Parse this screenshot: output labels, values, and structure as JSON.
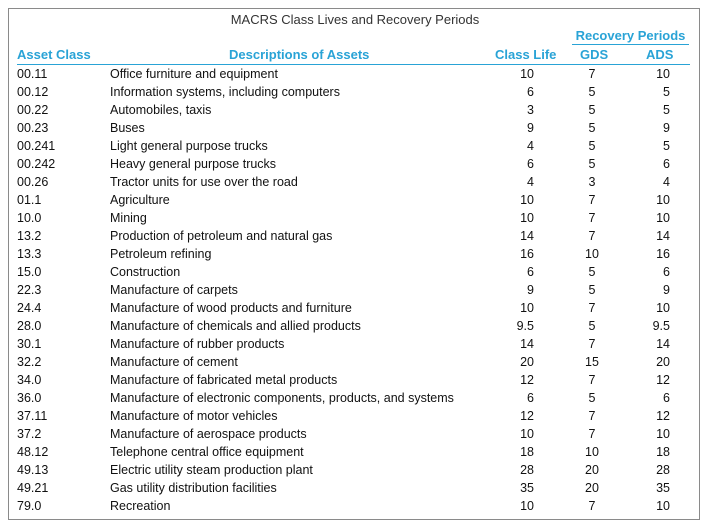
{
  "title": "MACRS Class Lives and Recovery Periods",
  "headers": {
    "recovery_periods": "Recovery Periods",
    "asset_class": "Asset Class",
    "descriptions": "Descriptions of Assets",
    "class_life": "Class Life",
    "gds": "GDS",
    "ads": "ADS"
  },
  "colors": {
    "header": "#29a3d6",
    "text": "#111111",
    "border": "#8a8a8a"
  },
  "rows": [
    {
      "asset_class": "00.11",
      "description": "Office furniture and equipment",
      "class_life": "10",
      "gds": "7",
      "ads": "10"
    },
    {
      "asset_class": "00.12",
      "description": "Information systems, including computers",
      "class_life": "6",
      "gds": "5",
      "ads": "5"
    },
    {
      "asset_class": "00.22",
      "description": "Automobiles, taxis",
      "class_life": "3",
      "gds": "5",
      "ads": "5"
    },
    {
      "asset_class": "00.23",
      "description": "Buses",
      "class_life": "9",
      "gds": "5",
      "ads": "9"
    },
    {
      "asset_class": "00.241",
      "description": "Light general purpose trucks",
      "class_life": "4",
      "gds": "5",
      "ads": "5"
    },
    {
      "asset_class": "00.242",
      "description": "Heavy general purpose trucks",
      "class_life": "6",
      "gds": "5",
      "ads": "6"
    },
    {
      "asset_class": "00.26",
      "description": "Tractor units for use over the road",
      "class_life": "4",
      "gds": "3",
      "ads": "4"
    },
    {
      "asset_class": "01.1",
      "description": "Agriculture",
      "class_life": "10",
      "gds": "7",
      "ads": "10"
    },
    {
      "asset_class": "10.0",
      "description": "Mining",
      "class_life": "10",
      "gds": "7",
      "ads": "10"
    },
    {
      "asset_class": "13.2",
      "description": "Production of petroleum and natural gas",
      "class_life": "14",
      "gds": "7",
      "ads": "14"
    },
    {
      "asset_class": "13.3",
      "description": "Petroleum refining",
      "class_life": "16",
      "gds": "10",
      "ads": "16"
    },
    {
      "asset_class": "15.0",
      "description": "Construction",
      "class_life": "6",
      "gds": "5",
      "ads": "6"
    },
    {
      "asset_class": "22.3",
      "description": "Manufacture of carpets",
      "class_life": "9",
      "gds": "5",
      "ads": "9"
    },
    {
      "asset_class": "24.4",
      "description": "Manufacture of wood products and furniture",
      "class_life": "10",
      "gds": "7",
      "ads": "10"
    },
    {
      "asset_class": "28.0",
      "description": "Manufacture of chemicals and allied products",
      "class_life": "9.5",
      "gds": "5",
      "ads": "9.5"
    },
    {
      "asset_class": "30.1",
      "description": "Manufacture of rubber products",
      "class_life": "14",
      "gds": "7",
      "ads": "14"
    },
    {
      "asset_class": "32.2",
      "description": "Manufacture of cement",
      "class_life": "20",
      "gds": "15",
      "ads": "20"
    },
    {
      "asset_class": "34.0",
      "description": "Manufacture of fabricated metal products",
      "class_life": "12",
      "gds": "7",
      "ads": "12"
    },
    {
      "asset_class": "36.0",
      "description": "Manufacture of electronic components, products, and systems",
      "class_life": "6",
      "gds": "5",
      "ads": "6"
    },
    {
      "asset_class": "37.11",
      "description": "Manufacture of motor vehicles",
      "class_life": "12",
      "gds": "7",
      "ads": "12"
    },
    {
      "asset_class": "37.2",
      "description": "Manufacture of aerospace products",
      "class_life": "10",
      "gds": "7",
      "ads": "10"
    },
    {
      "asset_class": "48.12",
      "description": "Telephone central office equipment",
      "class_life": "18",
      "gds": "10",
      "ads": "18"
    },
    {
      "asset_class": "49.13",
      "description": "Electric utility steam production plant",
      "class_life": "28",
      "gds": "20",
      "ads": "28"
    },
    {
      "asset_class": "49.21",
      "description": "Gas utility distribution facilities",
      "class_life": "35",
      "gds": "20",
      "ads": "35"
    },
    {
      "asset_class": "79.0",
      "description": "Recreation",
      "class_life": "10",
      "gds": "7",
      "ads": "10"
    }
  ]
}
